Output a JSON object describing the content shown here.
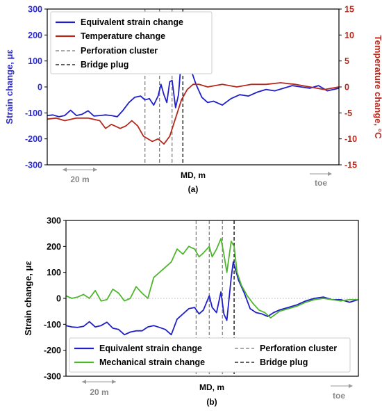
{
  "chart_data": [
    {
      "type": "line",
      "panel_label": "(a)",
      "xlabel": "MD, m",
      "ylabel": "Strain change, με",
      "y2label": "Temperature change, °C",
      "ylim": [
        -300,
        300
      ],
      "y2lim": [
        -15,
        15
      ],
      "yticks": [
        "300",
        "200",
        "100",
        "0",
        "-100",
        "-200",
        "-300"
      ],
      "y2ticks": [
        "15",
        "10",
        "5",
        "0",
        "-5",
        "-10",
        "-15"
      ],
      "scale_bar_label": "20 m",
      "direction_label": "toe",
      "legend": {
        "placement": "top-left",
        "entries": [
          "Equivalent strain change",
          "Temperature change",
          "Perforation cluster",
          "Bridge plug"
        ]
      },
      "perforation_clusters": [
        0.335,
        0.385,
        0.428
      ],
      "bridge_plug": 0.465,
      "series": [
        {
          "name": "Equivalent strain change",
          "axis": "left",
          "color": "#1f1fc8",
          "x": [
            0,
            0.02,
            0.04,
            0.06,
            0.08,
            0.1,
            0.12,
            0.14,
            0.16,
            0.18,
            0.2,
            0.22,
            0.24,
            0.26,
            0.28,
            0.3,
            0.32,
            0.335,
            0.35,
            0.365,
            0.38,
            0.39,
            0.4,
            0.41,
            0.42,
            0.428,
            0.44,
            0.45,
            0.455,
            0.462,
            0.467,
            0.475,
            0.49,
            0.51,
            0.53,
            0.55,
            0.57,
            0.6,
            0.63,
            0.66,
            0.69,
            0.72,
            0.75,
            0.78,
            0.81,
            0.84,
            0.87,
            0.9,
            0.93,
            0.96,
            1.0
          ],
          "y": [
            -110,
            -108,
            -115,
            -110,
            -90,
            -110,
            -105,
            -92,
            -112,
            -110,
            -108,
            -110,
            -115,
            -90,
            -60,
            -40,
            -35,
            -50,
            -45,
            -70,
            -35,
            10,
            -30,
            -60,
            20,
            25,
            -80,
            -30,
            40,
            140,
            100,
            60,
            75,
            10,
            -40,
            -60,
            -55,
            -70,
            -45,
            -30,
            -35,
            -20,
            -10,
            -15,
            -5,
            5,
            0,
            -5,
            5,
            -15,
            -5
          ]
        },
        {
          "name": "Temperature change",
          "axis": "right",
          "color": "#b5281c",
          "x": [
            0,
            0.03,
            0.06,
            0.1,
            0.14,
            0.18,
            0.2,
            0.22,
            0.25,
            0.27,
            0.29,
            0.31,
            0.33,
            0.36,
            0.38,
            0.4,
            0.42,
            0.44,
            0.46,
            0.48,
            0.5,
            0.52,
            0.55,
            0.6,
            0.65,
            0.7,
            0.75,
            0.8,
            0.85,
            0.9,
            0.95,
            1.0
          ],
          "y": [
            -6.2,
            -6.0,
            -6.5,
            -6.0,
            -6.0,
            -6.5,
            -8.0,
            -7.2,
            -8.0,
            -7.5,
            -6.5,
            -7.5,
            -9.5,
            -10.5,
            -10.0,
            -11.0,
            -9.5,
            -6.0,
            -2.5,
            -0.5,
            0.5,
            0.5,
            0.0,
            0.5,
            0.0,
            0.5,
            0.5,
            0.8,
            0.5,
            0.0,
            -0.5,
            0.0
          ]
        }
      ]
    },
    {
      "type": "line",
      "panel_label": "(b)",
      "xlabel": "MD, m",
      "ylabel": "Strain change, με",
      "ylim": [
        -300,
        300
      ],
      "yticks": [
        "300",
        "200",
        "100",
        "0",
        "-100",
        "-200",
        "-300"
      ],
      "scale_bar_label": "20 m",
      "direction_label": "toe",
      "legend": {
        "placement": "bottom-left",
        "entries": [
          "Equivalent strain change",
          "Mechanical strain change",
          "Perforation cluster",
          "Bridge plug"
        ]
      },
      "perforation_clusters": [
        0.445,
        0.49,
        0.535
      ],
      "bridge_plug": 0.575,
      "series": [
        {
          "name": "Equivalent strain change",
          "color": "#1f1fc8",
          "x": [
            0,
            0.02,
            0.04,
            0.06,
            0.08,
            0.1,
            0.12,
            0.14,
            0.16,
            0.18,
            0.2,
            0.22,
            0.24,
            0.26,
            0.28,
            0.3,
            0.32,
            0.34,
            0.36,
            0.38,
            0.4,
            0.42,
            0.44,
            0.455,
            0.47,
            0.49,
            0.5,
            0.515,
            0.53,
            0.54,
            0.55,
            0.565,
            0.572,
            0.58,
            0.59,
            0.61,
            0.63,
            0.65,
            0.67,
            0.69,
            0.71,
            0.73,
            0.76,
            0.79,
            0.82,
            0.85,
            0.88,
            0.91,
            0.94,
            0.97,
            1.0
          ],
          "y": [
            -105,
            -110,
            -112,
            -108,
            -90,
            -110,
            -105,
            -92,
            -115,
            -120,
            -140,
            -130,
            -125,
            -125,
            -110,
            -105,
            -112,
            -120,
            -140,
            -80,
            -60,
            -40,
            -35,
            -60,
            -45,
            10,
            -35,
            -55,
            25,
            -60,
            -85,
            80,
            140,
            110,
            70,
            20,
            -40,
            -55,
            -60,
            -70,
            -55,
            -45,
            -35,
            -25,
            -10,
            0,
            5,
            -5,
            -5,
            -15,
            -5
          ]
        },
        {
          "name": "Mechanical strain change",
          "color": "#4fb52d",
          "x": [
            0,
            0.02,
            0.04,
            0.06,
            0.08,
            0.1,
            0.12,
            0.14,
            0.16,
            0.18,
            0.2,
            0.22,
            0.24,
            0.26,
            0.28,
            0.3,
            0.32,
            0.34,
            0.36,
            0.38,
            0.4,
            0.42,
            0.44,
            0.455,
            0.47,
            0.49,
            0.5,
            0.515,
            0.53,
            0.54,
            0.55,
            0.565,
            0.575,
            0.585,
            0.6,
            0.62,
            0.64,
            0.66,
            0.68,
            0.7,
            0.73,
            0.76,
            0.79,
            0.82,
            0.85,
            0.88,
            0.91,
            0.94,
            0.97,
            1.0
          ],
          "y": [
            10,
            0,
            5,
            15,
            0,
            30,
            -10,
            -5,
            35,
            20,
            -10,
            0,
            45,
            20,
            0,
            80,
            100,
            120,
            140,
            190,
            170,
            200,
            190,
            160,
            175,
            200,
            160,
            190,
            230,
            170,
            100,
            220,
            200,
            100,
            50,
            10,
            -20,
            -45,
            -55,
            -75,
            -50,
            -40,
            -30,
            -15,
            -5,
            0,
            -5,
            -10,
            -5,
            -5
          ]
        }
      ]
    }
  ]
}
